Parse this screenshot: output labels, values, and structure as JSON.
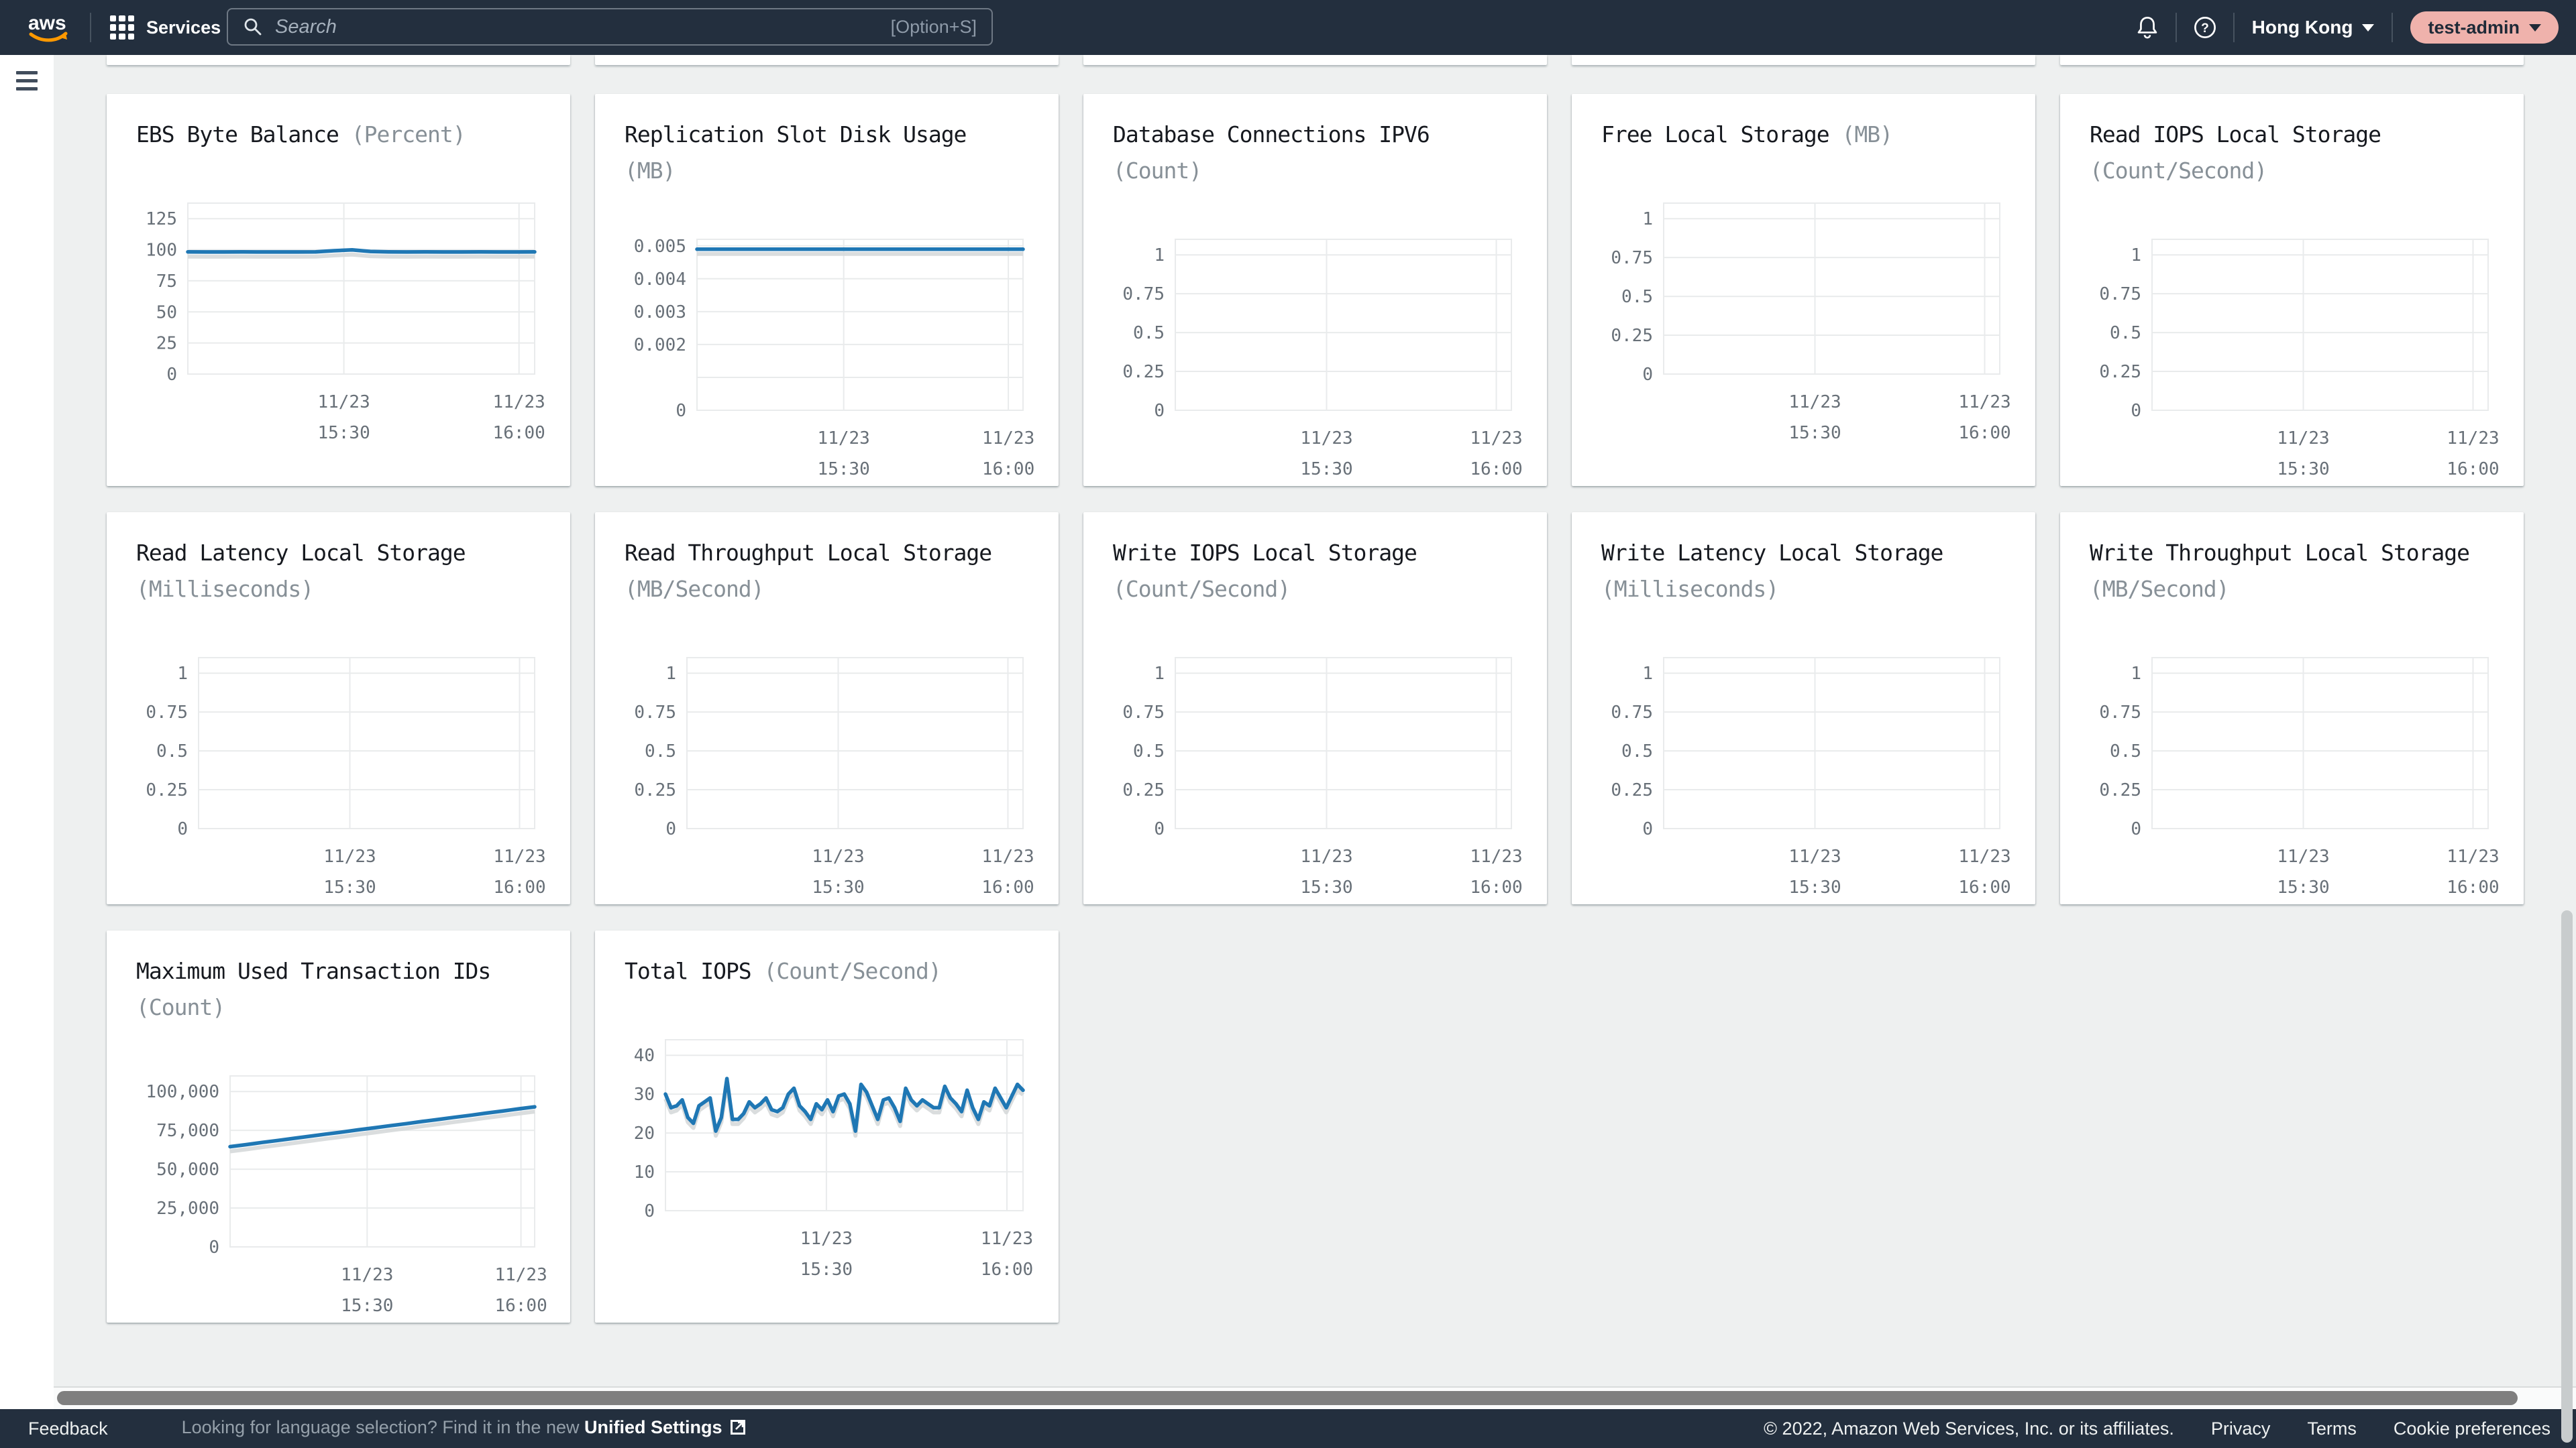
{
  "topbar": {
    "logo": "aws",
    "services_label": "Services",
    "search_placeholder": "Search",
    "search_shortcut": "[Option+S]",
    "region_label": "Hong Kong",
    "user_label": "test-admin"
  },
  "colors": {
    "header_bg": "#232f3e",
    "content_bg": "#eef0f0",
    "line_blue": "#1f77b4",
    "line_shadow": "#d6d9da",
    "grid_line": "#e9ebec",
    "tick_text": "#687078",
    "title_text": "#16191f",
    "unit_text": "#879097",
    "user_pill_bg": "#efb2ac",
    "aws_orange": "#ff9900"
  },
  "layout": {
    "cutoff_cards": 5
  },
  "footer": {
    "feedback_label": "Feedback",
    "language_prefix": "Looking for language selection? Find it in the new ",
    "language_link": "Unified Settings",
    "copyright": "© 2022, Amazon Web Services, Inc. or its affiliates.",
    "privacy_label": "Privacy",
    "terms_label": "Terms",
    "cookie_label": "Cookie preferences"
  },
  "chart_data": [
    {
      "type": "line",
      "title": "EBS Byte Balance",
      "unit": "(Percent)",
      "y_min": 0,
      "y_max": 137.5,
      "y_ticks": [
        {
          "v": 0,
          "label": "0"
        },
        {
          "v": 25,
          "label": "25"
        },
        {
          "v": 50,
          "label": "50"
        },
        {
          "v": 75,
          "label": "75"
        },
        {
          "v": 100,
          "label": "100"
        },
        {
          "v": 125,
          "label": "125"
        }
      ],
      "x_ticks": [
        {
          "pos": 0.45,
          "line1": "11/23",
          "line2": "15:30"
        },
        {
          "pos": 0.955,
          "line1": "11/23",
          "line2": "16:00"
        }
      ],
      "points": [
        98.3,
        98.2,
        98.2,
        98.3,
        98.2,
        98.2,
        98.2,
        98.3,
        99.2,
        99.9,
        98.6,
        98.3,
        98.2,
        98.3,
        98.2,
        98.2,
        98.3,
        98.2,
        98.2,
        98.3
      ]
    },
    {
      "type": "line",
      "title": "Replication Slot Disk Usage",
      "unit": "(MB)",
      "y_min": 0,
      "y_max": 0.0052,
      "y_ticks": [
        {
          "v": 0,
          "label": "0"
        },
        {
          "v": 0.002,
          "label": "0.002"
        },
        {
          "v": 0.003,
          "label": "0.003"
        },
        {
          "v": 0.004,
          "label": "0.004"
        },
        {
          "v": 0.005,
          "label": "0.005"
        }
      ],
      "y_minor": [
        0.001
      ],
      "x_ticks": [
        {
          "pos": 0.45,
          "line1": "11/23",
          "line2": "15:30"
        },
        {
          "pos": 0.955,
          "line1": "11/23",
          "line2": "16:00"
        }
      ],
      "points": [
        0.0049,
        0.0049,
        0.0049,
        0.0049,
        0.0049,
        0.0049,
        0.0049,
        0.0049,
        0.0049,
        0.0049,
        0.0049,
        0.0049,
        0.0049,
        0.0049,
        0.0049,
        0.0049,
        0.0049,
        0.0049,
        0.0049,
        0.0049
      ]
    },
    {
      "type": "line",
      "title": "Database Connections IPV6",
      "unit": "(Count)",
      "y_min": 0,
      "y_max": 1.1,
      "y_ticks": [
        {
          "v": 0,
          "label": "0"
        },
        {
          "v": 0.25,
          "label": "0.25"
        },
        {
          "v": 0.5,
          "label": "0.5"
        },
        {
          "v": 0.75,
          "label": "0.75"
        },
        {
          "v": 1,
          "label": "1"
        }
      ],
      "x_ticks": [
        {
          "pos": 0.45,
          "line1": "11/23",
          "line2": "15:30"
        },
        {
          "pos": 0.955,
          "line1": "11/23",
          "line2": "16:00"
        }
      ],
      "points": []
    },
    {
      "type": "line",
      "title": "Free Local Storage",
      "unit": "(MB)",
      "y_min": 0,
      "y_max": 1.1,
      "y_ticks": [
        {
          "v": 0,
          "label": "0"
        },
        {
          "v": 0.25,
          "label": "0.25"
        },
        {
          "v": 0.5,
          "label": "0.5"
        },
        {
          "v": 0.75,
          "label": "0.75"
        },
        {
          "v": 1,
          "label": "1"
        }
      ],
      "x_ticks": [
        {
          "pos": 0.45,
          "line1": "11/23",
          "line2": "15:30"
        },
        {
          "pos": 0.955,
          "line1": "11/23",
          "line2": "16:00"
        }
      ],
      "points": []
    },
    {
      "type": "line",
      "title": "Read IOPS Local Storage",
      "unit": "(Count/Second)",
      "y_min": 0,
      "y_max": 1.1,
      "y_ticks": [
        {
          "v": 0,
          "label": "0"
        },
        {
          "v": 0.25,
          "label": "0.25"
        },
        {
          "v": 0.5,
          "label": "0.5"
        },
        {
          "v": 0.75,
          "label": "0.75"
        },
        {
          "v": 1,
          "label": "1"
        }
      ],
      "x_ticks": [
        {
          "pos": 0.45,
          "line1": "11/23",
          "line2": "15:30"
        },
        {
          "pos": 0.955,
          "line1": "11/23",
          "line2": "16:00"
        }
      ],
      "points": []
    },
    {
      "type": "line",
      "title": "Read Latency Local Storage",
      "unit": "(Milliseconds)",
      "y_min": 0,
      "y_max": 1.1,
      "y_ticks": [
        {
          "v": 0,
          "label": "0"
        },
        {
          "v": 0.25,
          "label": "0.25"
        },
        {
          "v": 0.5,
          "label": "0.5"
        },
        {
          "v": 0.75,
          "label": "0.75"
        },
        {
          "v": 1,
          "label": "1"
        }
      ],
      "x_ticks": [
        {
          "pos": 0.45,
          "line1": "11/23",
          "line2": "15:30"
        },
        {
          "pos": 0.955,
          "line1": "11/23",
          "line2": "16:00"
        }
      ],
      "points": []
    },
    {
      "type": "line",
      "title": "Read Throughput Local Storage",
      "unit": "(MB/Second)",
      "y_min": 0,
      "y_max": 1.1,
      "y_ticks": [
        {
          "v": 0,
          "label": "0"
        },
        {
          "v": 0.25,
          "label": "0.25"
        },
        {
          "v": 0.5,
          "label": "0.5"
        },
        {
          "v": 0.75,
          "label": "0.75"
        },
        {
          "v": 1,
          "label": "1"
        }
      ],
      "x_ticks": [
        {
          "pos": 0.45,
          "line1": "11/23",
          "line2": "15:30"
        },
        {
          "pos": 0.955,
          "line1": "11/23",
          "line2": "16:00"
        }
      ],
      "points": []
    },
    {
      "type": "line",
      "title": "Write IOPS Local Storage",
      "unit": "(Count/Second)",
      "y_min": 0,
      "y_max": 1.1,
      "y_ticks": [
        {
          "v": 0,
          "label": "0"
        },
        {
          "v": 0.25,
          "label": "0.25"
        },
        {
          "v": 0.5,
          "label": "0.5"
        },
        {
          "v": 0.75,
          "label": "0.75"
        },
        {
          "v": 1,
          "label": "1"
        }
      ],
      "x_ticks": [
        {
          "pos": 0.45,
          "line1": "11/23",
          "line2": "15:30"
        },
        {
          "pos": 0.955,
          "line1": "11/23",
          "line2": "16:00"
        }
      ],
      "points": []
    },
    {
      "type": "line",
      "title": "Write Latency Local Storage",
      "unit": "(Milliseconds)",
      "y_min": 0,
      "y_max": 1.1,
      "y_ticks": [
        {
          "v": 0,
          "label": "0"
        },
        {
          "v": 0.25,
          "label": "0.25"
        },
        {
          "v": 0.5,
          "label": "0.5"
        },
        {
          "v": 0.75,
          "label": "0.75"
        },
        {
          "v": 1,
          "label": "1"
        }
      ],
      "x_ticks": [
        {
          "pos": 0.45,
          "line1": "11/23",
          "line2": "15:30"
        },
        {
          "pos": 0.955,
          "line1": "11/23",
          "line2": "16:00"
        }
      ],
      "points": []
    },
    {
      "type": "line",
      "title": "Write Throughput Local Storage",
      "unit": "(MB/Second)",
      "y_min": 0,
      "y_max": 1.1,
      "y_ticks": [
        {
          "v": 0,
          "label": "0"
        },
        {
          "v": 0.25,
          "label": "0.25"
        },
        {
          "v": 0.5,
          "label": "0.5"
        },
        {
          "v": 0.75,
          "label": "0.75"
        },
        {
          "v": 1,
          "label": "1"
        }
      ],
      "x_ticks": [
        {
          "pos": 0.45,
          "line1": "11/23",
          "line2": "15:30"
        },
        {
          "pos": 0.955,
          "line1": "11/23",
          "line2": "16:00"
        }
      ],
      "points": []
    },
    {
      "type": "line",
      "title": "Maximum Used Transaction IDs",
      "unit": "(Count)",
      "y_min": 0,
      "y_max": 110000,
      "y_ticks": [
        {
          "v": 0,
          "label": "0"
        },
        {
          "v": 25000,
          "label": "25,000"
        },
        {
          "v": 50000,
          "label": "50,000"
        },
        {
          "v": 75000,
          "label": "75,000"
        },
        {
          "v": 100000,
          "label": "100,000"
        }
      ],
      "x_ticks": [
        {
          "pos": 0.45,
          "line1": "11/23",
          "line2": "15:30"
        },
        {
          "pos": 0.955,
          "line1": "11/23",
          "line2": "16:00"
        }
      ],
      "points": [
        64500,
        65800,
        67200,
        68500,
        69900,
        71200,
        72600,
        73900,
        75300,
        76600,
        78000,
        79300,
        80700,
        82000,
        83400,
        84700,
        86100,
        87400,
        88800,
        90100
      ]
    },
    {
      "type": "line",
      "title": "Total IOPS",
      "unit": "(Count/Second)",
      "y_min": 0,
      "y_max": 44,
      "y_ticks": [
        {
          "v": 0,
          "label": "0"
        },
        {
          "v": 10,
          "label": "10"
        },
        {
          "v": 20,
          "label": "20"
        },
        {
          "v": 30,
          "label": "30"
        },
        {
          "v": 40,
          "label": "40"
        }
      ],
      "x_ticks": [
        {
          "pos": 0.45,
          "line1": "11/23",
          "line2": "15:30"
        },
        {
          "pos": 0.955,
          "line1": "11/23",
          "line2": "16:00"
        }
      ],
      "points": [
        30,
        26.5,
        27,
        28.5,
        24,
        22.5,
        27,
        28,
        29,
        20.5,
        24,
        34,
        23.5,
        23.5,
        25,
        28,
        26.5,
        27.5,
        29,
        26,
        25.5,
        26.5,
        30,
        31.5,
        27,
        25.5,
        23.5,
        27.5,
        26,
        28.5,
        25.5,
        29.5,
        30,
        27.5,
        20.5,
        32.5,
        30.5,
        27,
        23.5,
        28.5,
        29,
        26.5,
        23,
        31.5,
        28.5,
        27,
        28.5,
        27.5,
        26.5,
        26.5,
        32,
        29,
        27.5,
        25.5,
        31,
        26.5,
        23.5,
        28,
        27,
        31.5,
        29,
        26.5,
        29.5,
        32.5,
        31
      ]
    }
  ]
}
